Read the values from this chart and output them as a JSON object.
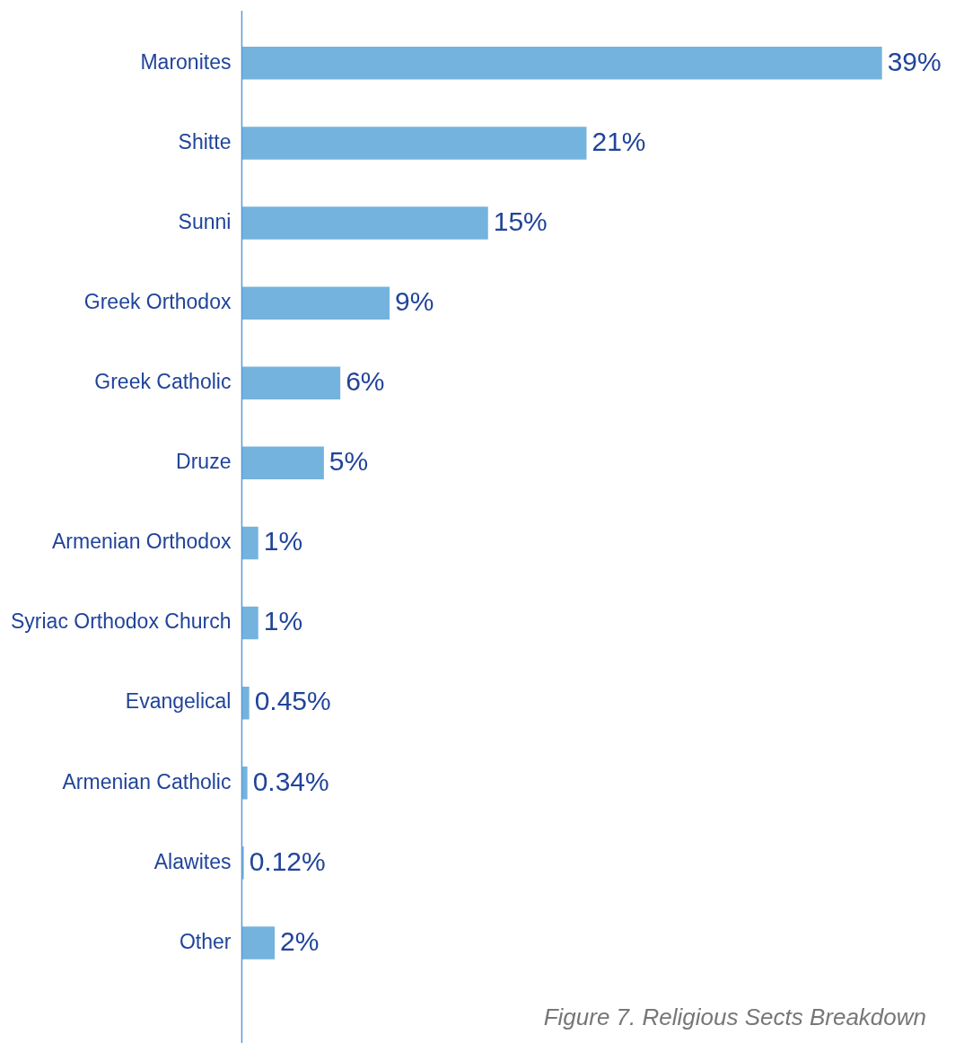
{
  "chart_data": {
    "type": "bar",
    "orientation": "horizontal",
    "legend": false,
    "title": "Figure 7. Religious Sects Breakdown",
    "categories": [
      "Maronites",
      "Shitte",
      "Sunni",
      "Greek Orthodox",
      "Greek Catholic",
      "Druze",
      "Armenian Orthodox",
      "Syriac Orthodox Church",
      "Evangelical",
      "Armenian Catholic",
      "Alawites",
      "Other"
    ],
    "values": [
      39,
      21,
      15,
      9,
      6,
      5,
      1,
      1,
      0.45,
      0.34,
      0.12,
      2
    ],
    "value_labels": [
      "39%",
      "21%",
      "15%",
      "9%",
      "6%",
      "5%",
      "1%",
      "1%",
      "0.45%",
      "0.34%",
      "0.12%",
      "2%"
    ],
    "color": "#74b3de"
  }
}
